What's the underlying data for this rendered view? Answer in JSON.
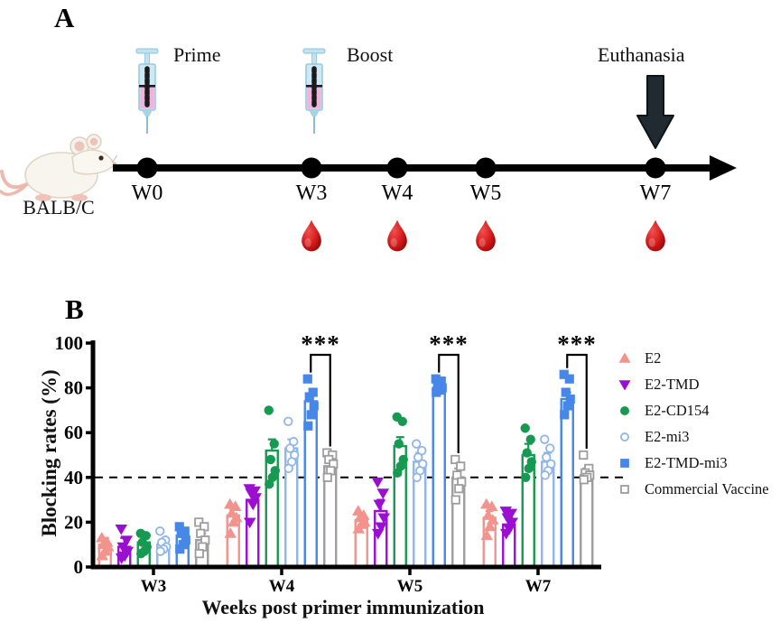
{
  "panel_a": {
    "label": "A",
    "mouse_label": "BALB/C",
    "prime_label": "Prime",
    "boost_label": "Boost",
    "euthanasia_label": "Euthanasia",
    "timeline_weeks": [
      "W0",
      "W3",
      "W4",
      "W5",
      "W7"
    ],
    "blood_sample_weeks": [
      "W3",
      "W4",
      "W5",
      "W7"
    ]
  },
  "panel_b": {
    "label": "B"
  },
  "chart_data": {
    "type": "bar",
    "title": "",
    "xlabel": "Weeks post primer immunization",
    "ylabel": "Blocking rates (%)",
    "ylim": [
      0,
      100
    ],
    "yticks": [
      0,
      20,
      40,
      60,
      80,
      100
    ],
    "grid": false,
    "legend_position": "right",
    "dashed_line_y": 40,
    "categories": [
      "W3",
      "W4",
      "W5",
      "W7"
    ],
    "series": [
      {
        "name": "E2",
        "color": "#F2938E",
        "marker": "triangle-up",
        "filled": true,
        "means": [
          10,
          23,
          21,
          22
        ],
        "errors": [
          3,
          3,
          2,
          3
        ],
        "points": [
          [
            13,
            11,
            10,
            9,
            7,
            5
          ],
          [
            28,
            27,
            24,
            22,
            20,
            15
          ],
          [
            25,
            23,
            22,
            20,
            19,
            17
          ],
          [
            28,
            27,
            23,
            21,
            18,
            14
          ]
        ]
      },
      {
        "name": "E2-TMD",
        "color": "#9A0FD0",
        "marker": "triangle-down",
        "filled": true,
        "means": [
          9,
          30,
          25,
          19
        ],
        "errors": [
          4,
          3,
          5,
          3
        ],
        "points": [
          [
            17,
            12,
            9,
            7,
            5,
            4
          ],
          [
            35,
            34,
            33,
            31,
            28,
            20
          ],
          [
            38,
            33,
            28,
            22,
            18,
            15
          ],
          [
            25,
            24,
            22,
            20,
            17,
            15
          ]
        ]
      },
      {
        "name": "E2-CD154",
        "color": "#169A52",
        "marker": "circle",
        "filled": true,
        "means": [
          11,
          52,
          54,
          50
        ],
        "errors": [
          2.5,
          5,
          4,
          5
        ],
        "points": [
          [
            15,
            14,
            11,
            9,
            7,
            6
          ],
          [
            70,
            55,
            48,
            43,
            40,
            37
          ],
          [
            67,
            65,
            55,
            48,
            45,
            42
          ],
          [
            62,
            57,
            51,
            47,
            44,
            40
          ]
        ]
      },
      {
        "name": "E2-mi3",
        "color": "#8FB5EA",
        "marker": "circle",
        "filled": false,
        "means": [
          10,
          53,
          47,
          47
        ],
        "errors": [
          2,
          4,
          4,
          4
        ],
        "points": [
          [
            16,
            12,
            11,
            9,
            8,
            7
          ],
          [
            65,
            56,
            53,
            50,
            47,
            44
          ],
          [
            55,
            52,
            49,
            46,
            43,
            40
          ],
          [
            57,
            53,
            49,
            46,
            43,
            41
          ]
        ]
      },
      {
        "name": "E2-TMD-mi3",
        "color": "#4687E8",
        "marker": "square",
        "filled": true,
        "means": [
          14,
          74,
          80,
          75
        ],
        "errors": [
          2,
          3,
          2,
          3
        ],
        "points": [
          [
            18,
            16,
            15,
            12,
            10,
            8
          ],
          [
            84,
            78,
            76,
            72,
            68,
            63
          ],
          [
            84,
            83,
            81,
            80,
            79,
            78
          ],
          [
            86,
            84,
            78,
            75,
            72,
            68
          ]
        ]
      },
      {
        "name": "Commercial Vaccine",
        "color": "#9D9D9D",
        "marker": "square",
        "filled": false,
        "means": [
          12,
          45,
          40,
          41
        ],
        "errors": [
          3,
          3,
          4,
          3
        ],
        "points": [
          [
            20,
            18,
            15,
            12,
            9,
            6
          ],
          [
            51,
            50,
            48,
            46,
            43,
            40
          ],
          [
            48,
            45,
            41,
            38,
            35,
            30
          ],
          [
            50,
            44,
            42,
            41,
            40,
            39
          ]
        ]
      }
    ],
    "significance": [
      {
        "category": "W4",
        "between": [
          "E2-TMD-mi3",
          "Commercial Vaccine"
        ],
        "label": "***"
      },
      {
        "category": "W5",
        "between": [
          "E2-TMD-mi3",
          "Commercial Vaccine"
        ],
        "label": "***"
      },
      {
        "category": "W7",
        "between": [
          "E2-TMD-mi3",
          "Commercial Vaccine"
        ],
        "label": "***"
      }
    ]
  }
}
